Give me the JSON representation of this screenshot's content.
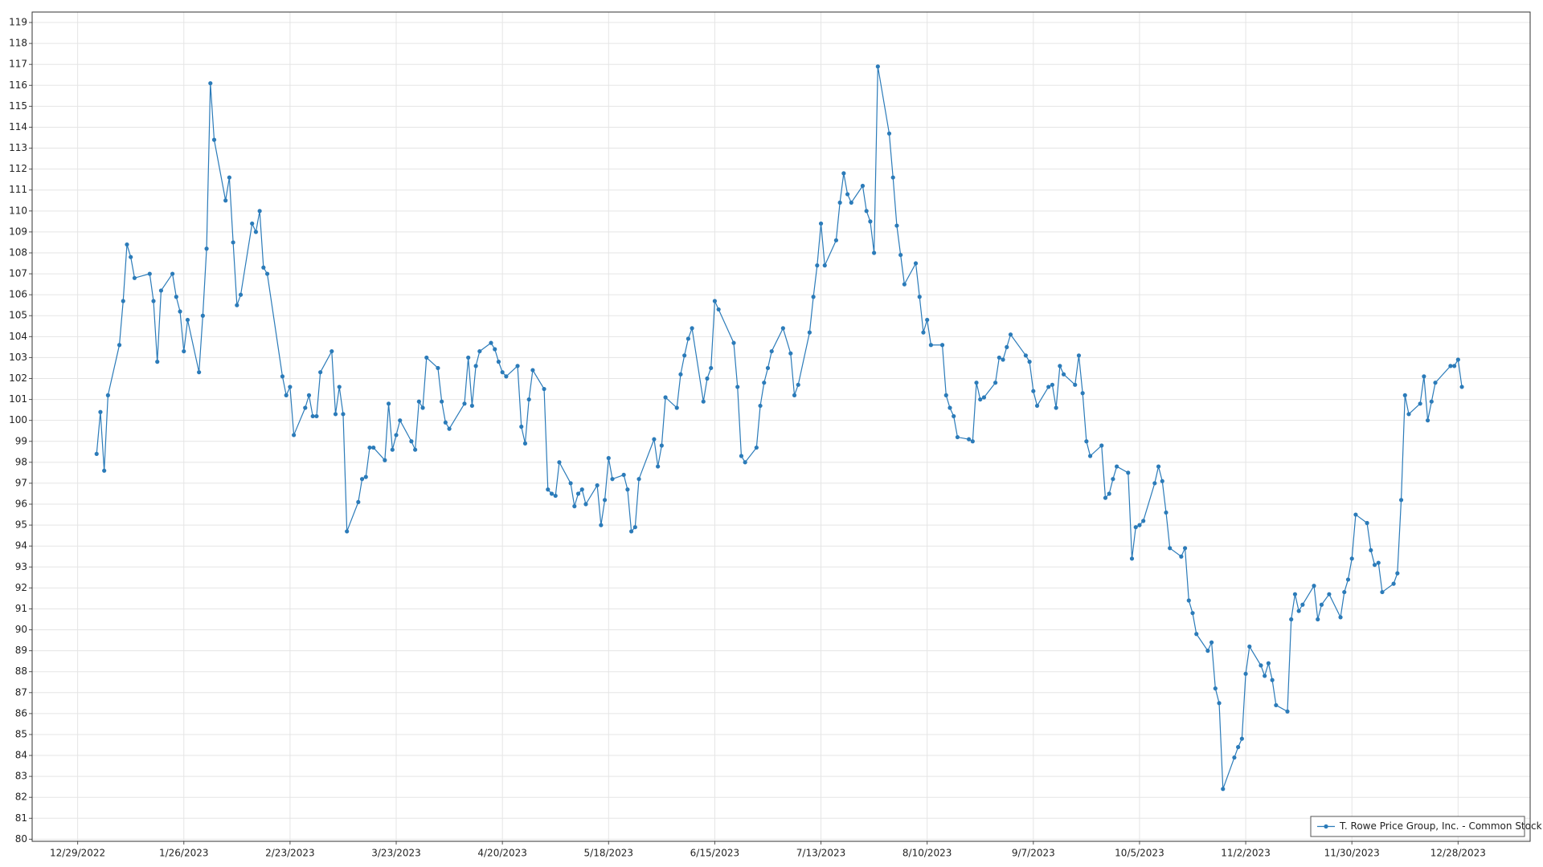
{
  "chart_data": {
    "type": "line",
    "x": [
      "1/3/2023",
      "1/4/2023",
      "1/5/2023",
      "1/6/2023",
      "1/9/2023",
      "1/10/2023",
      "1/11/2023",
      "1/12/2023",
      "1/13/2023",
      "1/17/2023",
      "1/18/2023",
      "1/19/2023",
      "1/20/2023",
      "1/23/2023",
      "1/24/2023",
      "1/25/2023",
      "1/26/2023",
      "1/27/2023",
      "1/30/2023",
      "1/31/2023",
      "2/1/2023",
      "2/2/2023",
      "2/3/2023",
      "2/6/2023",
      "2/7/2023",
      "2/8/2023",
      "2/9/2023",
      "2/10/2023",
      "2/13/2023",
      "2/14/2023",
      "2/15/2023",
      "2/16/2023",
      "2/17/2023",
      "2/21/2023",
      "2/22/2023",
      "2/23/2023",
      "2/24/2023",
      "2/27/2023",
      "2/28/2023",
      "3/1/2023",
      "3/2/2023",
      "3/3/2023",
      "3/6/2023",
      "3/7/2023",
      "3/8/2023",
      "3/9/2023",
      "3/10/2023",
      "3/13/2023",
      "3/14/2023",
      "3/15/2023",
      "3/16/2023",
      "3/17/2023",
      "3/20/2023",
      "3/21/2023",
      "3/22/2023",
      "3/23/2023",
      "3/24/2023",
      "3/27/2023",
      "3/28/2023",
      "3/29/2023",
      "3/30/2023",
      "3/31/2023",
      "4/3/2023",
      "4/4/2023",
      "4/5/2023",
      "4/6/2023",
      "4/10/2023",
      "4/11/2023",
      "4/12/2023",
      "4/13/2023",
      "4/14/2023",
      "4/17/2023",
      "4/18/2023",
      "4/19/2023",
      "4/20/2023",
      "4/21/2023",
      "4/24/2023",
      "4/25/2023",
      "4/26/2023",
      "4/27/2023",
      "4/28/2023",
      "5/1/2023",
      "5/2/2023",
      "5/3/2023",
      "5/4/2023",
      "5/5/2023",
      "5/8/2023",
      "5/9/2023",
      "5/10/2023",
      "5/11/2023",
      "5/12/2023",
      "5/15/2023",
      "5/16/2023",
      "5/17/2023",
      "5/18/2023",
      "5/19/2023",
      "5/22/2023",
      "5/23/2023",
      "5/24/2023",
      "5/25/2023",
      "5/26/2023",
      "5/30/2023",
      "5/31/2023",
      "6/1/2023",
      "6/2/2023",
      "6/5/2023",
      "6/6/2023",
      "6/7/2023",
      "6/8/2023",
      "6/9/2023",
      "6/12/2023",
      "6/13/2023",
      "6/14/2023",
      "6/15/2023",
      "6/16/2023",
      "6/20/2023",
      "6/21/2023",
      "6/22/2023",
      "6/23/2023",
      "6/26/2023",
      "6/27/2023",
      "6/28/2023",
      "6/29/2023",
      "6/30/2023",
      "7/3/2023",
      "7/5/2023",
      "7/6/2023",
      "7/7/2023",
      "7/10/2023",
      "7/11/2023",
      "7/12/2023",
      "7/13/2023",
      "7/14/2023",
      "7/17/2023",
      "7/18/2023",
      "7/19/2023",
      "7/20/2023",
      "7/21/2023",
      "7/24/2023",
      "7/25/2023",
      "7/26/2023",
      "7/27/2023",
      "7/28/2023",
      "7/31/2023",
      "8/1/2023",
      "8/2/2023",
      "8/3/2023",
      "8/4/2023",
      "8/7/2023",
      "8/8/2023",
      "8/9/2023",
      "8/10/2023",
      "8/11/2023",
      "8/14/2023",
      "8/15/2023",
      "8/16/2023",
      "8/17/2023",
      "8/18/2023",
      "8/21/2023",
      "8/22/2023",
      "8/23/2023",
      "8/24/2023",
      "8/25/2023",
      "8/28/2023",
      "8/29/2023",
      "8/30/2023",
      "8/31/2023",
      "9/1/2023",
      "9/5/2023",
      "9/6/2023",
      "9/7/2023",
      "9/8/2023",
      "9/11/2023",
      "9/12/2023",
      "9/13/2023",
      "9/14/2023",
      "9/15/2023",
      "9/18/2023",
      "9/19/2023",
      "9/20/2023",
      "9/21/2023",
      "9/22/2023",
      "9/25/2023",
      "9/26/2023",
      "9/27/2023",
      "9/28/2023",
      "9/29/2023",
      "10/2/2023",
      "10/3/2023",
      "10/4/2023",
      "10/5/2023",
      "10/6/2023",
      "10/9/2023",
      "10/10/2023",
      "10/11/2023",
      "10/12/2023",
      "10/13/2023",
      "10/16/2023",
      "10/17/2023",
      "10/18/2023",
      "10/19/2023",
      "10/20/2023",
      "10/23/2023",
      "10/24/2023",
      "10/25/2023",
      "10/26/2023",
      "10/27/2023",
      "10/30/2023",
      "10/31/2023",
      "11/1/2023",
      "11/2/2023",
      "11/3/2023",
      "11/6/2023",
      "11/7/2023",
      "11/8/2023",
      "11/9/2023",
      "11/10/2023",
      "11/13/2023",
      "11/14/2023",
      "11/15/2023",
      "11/16/2023",
      "11/17/2023",
      "11/20/2023",
      "11/21/2023",
      "11/22/2023",
      "11/24/2023",
      "11/27/2023",
      "11/28/2023",
      "11/29/2023",
      "11/30/2023",
      "12/1/2023",
      "12/4/2023",
      "12/5/2023",
      "12/6/2023",
      "12/7/2023",
      "12/8/2023",
      "12/11/2023",
      "12/12/2023",
      "12/13/2023",
      "12/14/2023",
      "12/15/2023",
      "12/18/2023",
      "12/19/2023",
      "12/20/2023",
      "12/21/2023",
      "12/22/2023",
      "12/26/2023",
      "12/27/2023",
      "12/28/2023",
      "12/29/2023"
    ],
    "series": [
      {
        "name": "T. Rowe Price Group, Inc. - Common Stock",
        "color": "#2b7bb9",
        "values": [
          98.4,
          100.4,
          97.6,
          101.2,
          103.6,
          105.7,
          108.4,
          107.8,
          106.8,
          107.0,
          105.7,
          102.8,
          106.2,
          107.0,
          105.9,
          105.2,
          103.3,
          104.8,
          102.3,
          105.0,
          108.2,
          116.1,
          113.4,
          110.5,
          111.6,
          108.5,
          105.5,
          106.0,
          109.4,
          109.0,
          110.0,
          107.3,
          107.0,
          102.1,
          101.2,
          101.6,
          99.3,
          100.6,
          101.2,
          100.2,
          100.2,
          102.3,
          103.3,
          100.3,
          101.6,
          100.3,
          94.7,
          96.1,
          97.2,
          97.3,
          98.7,
          98.7,
          98.1,
          100.8,
          98.6,
          99.3,
          100.0,
          99.0,
          98.6,
          100.9,
          100.6,
          103.0,
          102.5,
          100.9,
          99.9,
          99.6,
          100.8,
          103.0,
          100.7,
          102.6,
          103.3,
          103.7,
          103.4,
          102.8,
          102.3,
          102.1,
          102.6,
          99.7,
          98.9,
          101.0,
          102.4,
          101.5,
          96.7,
          96.5,
          96.4,
          98.0,
          97.0,
          95.9,
          96.5,
          96.7,
          96.0,
          96.9,
          95.0,
          96.2,
          98.2,
          97.2,
          97.4,
          96.7,
          94.7,
          94.9,
          97.2,
          99.1,
          97.8,
          98.8,
          101.1,
          100.6,
          102.2,
          103.1,
          103.9,
          104.4,
          100.9,
          102.0,
          102.5,
          105.7,
          105.3,
          103.7,
          101.6,
          98.3,
          98.0,
          98.7,
          100.7,
          101.8,
          102.5,
          103.3,
          104.4,
          103.2,
          101.2,
          101.7,
          104.2,
          105.9,
          107.4,
          109.4,
          107.4,
          108.6,
          110.4,
          111.8,
          110.8,
          110.4,
          111.2,
          110.0,
          109.5,
          108.0,
          116.9,
          113.7,
          111.6,
          109.3,
          107.9,
          106.5,
          107.5,
          105.9,
          104.2,
          104.8,
          103.6,
          103.6,
          101.2,
          100.6,
          100.2,
          99.2,
          99.1,
          99.0,
          101.8,
          101.0,
          101.1,
          101.8,
          103.0,
          102.9,
          103.5,
          104.1,
          103.1,
          102.8,
          101.4,
          100.7,
          101.6,
          101.7,
          100.6,
          102.6,
          102.2,
          101.7,
          103.1,
          101.3,
          99.0,
          98.3,
          98.8,
          96.3,
          96.5,
          97.2,
          97.8,
          97.5,
          93.4,
          94.9,
          95.0,
          95.2,
          97.0,
          97.8,
          97.1,
          95.6,
          93.9,
          93.5,
          93.9,
          91.4,
          90.8,
          89.8,
          89.0,
          89.4,
          87.2,
          86.5,
          82.4,
          83.9,
          84.4,
          84.8,
          87.9,
          89.2,
          88.3,
          87.8,
          88.4,
          87.6,
          86.4,
          86.1,
          90.5,
          91.7,
          90.9,
          91.2,
          92.1,
          90.5,
          91.2,
          91.7,
          90.6,
          91.8,
          92.4,
          93.4,
          95.5,
          95.1,
          93.8,
          93.1,
          93.2,
          91.8,
          92.2,
          92.7,
          96.2,
          101.2,
          100.3,
          100.8,
          102.1,
          100.0,
          100.9,
          101.8,
          102.6,
          102.6,
          102.9,
          101.6
        ]
      }
    ],
    "xlim": [
      "12/17/2022",
      "1/16/2024"
    ],
    "xticks": [
      "12/29/2022",
      "1/26/2023",
      "2/23/2023",
      "3/23/2023",
      "4/20/2023",
      "5/18/2023",
      "6/15/2023",
      "7/13/2023",
      "8/10/2023",
      "9/7/2023",
      "10/5/2023",
      "11/2/2023",
      "11/30/2023",
      "12/28/2023"
    ],
    "ylim": [
      79.9,
      119.5
    ],
    "yticks": [
      80,
      81,
      82,
      83,
      84,
      85,
      86,
      87,
      88,
      89,
      90,
      91,
      92,
      93,
      94,
      95,
      96,
      97,
      98,
      99,
      100,
      101,
      102,
      103,
      104,
      105,
      106,
      107,
      108,
      109,
      110,
      111,
      112,
      113,
      114,
      115,
      116,
      117,
      118,
      119
    ],
    "grid": true,
    "legend": "lower right"
  }
}
